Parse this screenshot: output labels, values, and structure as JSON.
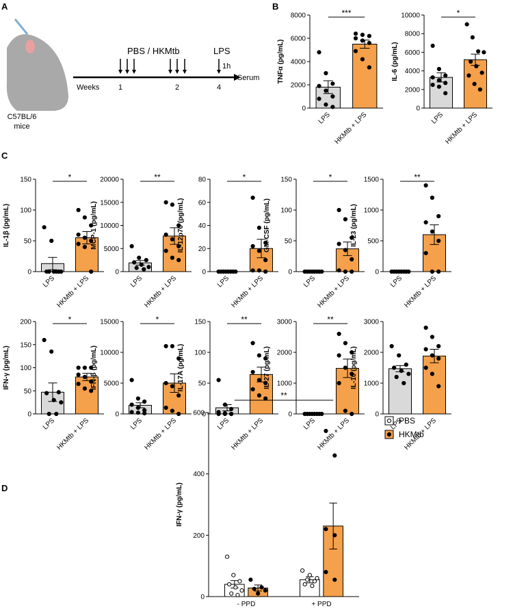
{
  "panel_labels": [
    "A",
    "B",
    "C",
    "D"
  ],
  "schematic": {
    "mouse": [
      "C57BL/6",
      "mice"
    ],
    "weeks": "Weeks",
    "week_numbers": [
      "1",
      "2",
      "4"
    ],
    "treatment": "PBS / HKMtb",
    "challenge": "LPS",
    "interval": "1h",
    "endpoint": "Serum"
  },
  "chart_data": [
    {
      "type": "bar",
      "ylabel": "TNFα (pg/mL)",
      "categories": [
        "LPS",
        "HKMtb + LPS"
      ],
      "colors": [
        "#d9d9d9",
        "#f5a04a"
      ],
      "values": [
        1800,
        5500
      ],
      "errors": [
        550,
        350
      ],
      "points": [
        [
          4800,
          3000,
          2100,
          1900,
          1500,
          1000,
          800,
          300,
          100
        ],
        [
          6400,
          6300,
          6200,
          6000,
          5800,
          5600,
          4900,
          4200,
          3500
        ]
      ],
      "significance": "***",
      "ylim": [
        0,
        8000
      ],
      "yticks": [
        0,
        2000,
        4000,
        6000,
        8000
      ]
    },
    {
      "type": "bar",
      "ylabel": "IL-6 (pg/mL)",
      "categories": [
        "LPS",
        "HKMtb + LPS"
      ],
      "colors": [
        "#d9d9d9",
        "#f5a04a"
      ],
      "values": [
        3300,
        5200
      ],
      "errors": [
        500,
        600
      ],
      "points": [
        [
          6700,
          4200,
          3500,
          3300,
          3000,
          2700,
          2500,
          2300,
          1600
        ],
        [
          9000,
          7600,
          6100,
          6000,
          5000,
          4500,
          3800,
          3500,
          2600,
          2000
        ]
      ],
      "significance": "*",
      "ylim": [
        0,
        10000
      ],
      "yticks": [
        0,
        2000,
        4000,
        6000,
        8000,
        10000
      ]
    },
    {
      "type": "bar",
      "ylabel": "IL-1β (pg/mL)",
      "categories": [
        "LPS",
        "HKMtb + LPS"
      ],
      "colors": [
        "#d9d9d9",
        "#f5a04a"
      ],
      "values": [
        13,
        55
      ],
      "errors": [
        10,
        10
      ],
      "points": [
        [
          72,
          50,
          0,
          0,
          0,
          0,
          0,
          0
        ],
        [
          100,
          88,
          75,
          60,
          55,
          50,
          45,
          40,
          0
        ]
      ],
      "significance": "*",
      "ylim": [
        0,
        150
      ],
      "yticks": [
        0,
        50,
        100,
        150
      ]
    },
    {
      "type": "bar",
      "ylabel": "MCP-1 (pg/mL)",
      "categories": [
        "LPS",
        "HKMtb + LPS"
      ],
      "colors": [
        "#d9d9d9",
        "#f5a04a"
      ],
      "values": [
        1900,
        7700
      ],
      "errors": [
        500,
        1800
      ],
      "points": [
        [
          5500,
          3000,
          2500,
          2000,
          1500,
          1000,
          800,
          500
        ],
        [
          15000,
          14500,
          10000,
          8000,
          7000,
          5500,
          4500,
          3000,
          2500
        ]
      ],
      "significance": "**",
      "ylim": [
        0,
        20000
      ],
      "yticks": [
        0,
        5000,
        10000,
        15000,
        20000
      ]
    },
    {
      "type": "bar",
      "ylabel": "IL-12p70 (pg/mL)",
      "categories": [
        "LPS",
        "HKMtb + LPS"
      ],
      "colors": [
        "#d9d9d9",
        "#f5a04a"
      ],
      "values": [
        0,
        20
      ],
      "errors": [
        0,
        8
      ],
      "points": [
        [
          0,
          0,
          0,
          0,
          0,
          0,
          0,
          0
        ],
        [
          64,
          38,
          25,
          22,
          18,
          10,
          1,
          1,
          0
        ]
      ],
      "significance": "*",
      "ylim": [
        0,
        80
      ],
      "yticks": [
        0,
        20,
        40,
        60,
        80
      ]
    },
    {
      "type": "bar",
      "ylabel": "GM-CSF (pg/mL)",
      "categories": [
        "LPS",
        "HKMtb + LPS"
      ],
      "colors": [
        "#d9d9d9",
        "#f5a04a"
      ],
      "values": [
        0,
        37
      ],
      "errors": [
        0,
        11
      ],
      "points": [
        [
          0,
          0,
          0,
          0,
          0,
          0,
          0,
          0
        ],
        [
          100,
          85,
          55,
          45,
          35,
          20,
          2,
          0,
          0
        ]
      ],
      "significance": "*",
      "ylim": [
        0,
        150
      ],
      "yticks": [
        0,
        50,
        100,
        150
      ]
    },
    {
      "type": "bar",
      "ylabel": "IL-23 (pg/mL)",
      "categories": [
        "LPS",
        "HKMtb + LPS"
      ],
      "colors": [
        "#d9d9d9",
        "#f5a04a"
      ],
      "values": [
        0,
        600
      ],
      "errors": [
        0,
        160
      ],
      "points": [
        [
          0,
          0,
          0,
          0,
          0,
          0,
          0,
          0
        ],
        [
          1400,
          1200,
          900,
          800,
          650,
          500,
          300,
          0,
          0
        ]
      ],
      "significance": "**",
      "ylim": [
        0,
        1500
      ],
      "yticks": [
        0,
        500,
        1000,
        1500
      ]
    },
    {
      "type": "bar",
      "ylabel": "IFN-γ (pg/mL)",
      "categories": [
        "LPS",
        "HKMtb + LPS"
      ],
      "colors": [
        "#d9d9d9",
        "#f5a04a"
      ],
      "values": [
        47,
        80
      ],
      "errors": [
        20,
        8
      ],
      "points": [
        [
          160,
          135,
          47,
          45,
          30,
          25,
          0,
          0
        ],
        [
          100,
          100,
          100,
          85,
          80,
          70,
          65,
          55,
          50
        ]
      ],
      "significance": "*",
      "ylim": [
        0,
        200
      ],
      "yticks": [
        0,
        50,
        100,
        150,
        200
      ]
    },
    {
      "type": "bar",
      "ylabel": "IFN-β (pg/mL)",
      "categories": [
        "LPS",
        "HKMtb + LPS"
      ],
      "colors": [
        "#d9d9d9",
        "#f5a04a"
      ],
      "values": [
        1400,
        5000
      ],
      "errors": [
        400,
        1500
      ],
      "points": [
        [
          5500,
          2500,
          2000,
          1500,
          1000,
          600,
          300,
          200,
          100
        ],
        [
          11000,
          11000,
          9000,
          5000,
          4500,
          3000,
          1000,
          500,
          0
        ]
      ],
      "significance": "*",
      "ylim": [
        0,
        15000
      ],
      "yticks": [
        0,
        5000,
        10000,
        15000
      ]
    },
    {
      "type": "bar",
      "ylabel": "IL-17A (pg/mL)",
      "categories": [
        "LPS",
        "HKMtb + LPS"
      ],
      "colors": [
        "#d9d9d9",
        "#f5a04a"
      ],
      "values": [
        10,
        64
      ],
      "errors": [
        5,
        12
      ],
      "points": [
        [
          55,
          15,
          8,
          3,
          1,
          0,
          0,
          0,
          0
        ],
        [
          115,
          95,
          90,
          68,
          55,
          50,
          40,
          30,
          25
        ]
      ],
      "significance": "**",
      "ylim": [
        0,
        150
      ],
      "yticks": [
        0,
        50,
        100,
        150
      ]
    },
    {
      "type": "bar",
      "ylabel": "IL-27 (pg/mL)",
      "categories": [
        "LPS",
        "HKMtb + LPS"
      ],
      "colors": [
        "#d9d9d9",
        "#f5a04a"
      ],
      "values": [
        0,
        1480
      ],
      "errors": [
        0,
        300
      ],
      "points": [
        [
          0,
          0,
          0,
          0,
          0,
          0,
          0,
          0
        ],
        [
          2600,
          2300,
          2000,
          1900,
          1500,
          1300,
          1000,
          100,
          0
        ]
      ],
      "significance": "**",
      "ylim": [
        0,
        3000
      ],
      "yticks": [
        0,
        1000,
        2000,
        3000
      ]
    },
    {
      "type": "bar",
      "ylabel": "IL-10 (pg/mL)",
      "categories": [
        "LPS",
        "HKMtb + LPS"
      ],
      "colors": [
        "#d9d9d9",
        "#f5a04a"
      ],
      "values": [
        1470,
        1880
      ],
      "errors": [
        100,
        220
      ],
      "points": [
        [
          2200,
          1900,
          1600,
          1500,
          1400,
          1300,
          1200,
          1000
        ],
        [
          2800,
          2500,
          2200,
          2100,
          1900,
          1800,
          1500,
          1300,
          900
        ]
      ],
      "ylim": [
        0,
        3000
      ],
      "yticks": [
        0,
        1000,
        2000,
        3000
      ]
    },
    {
      "type": "grouped_bar",
      "ylabel": "IFN-γ (pg/mL)",
      "categories": [
        "- PPD",
        "+ PPD"
      ],
      "significance": "**",
      "ylim": [
        0,
        600
      ],
      "yticks": [
        0,
        200,
        400,
        600
      ],
      "series": [
        {
          "name": "PBS",
          "color": "#ffffff",
          "point_style": "open",
          "values": [
            40,
            55
          ],
          "errors": [
            12,
            10
          ],
          "points": [
            [
              130,
              70,
              50,
              40,
              30,
              20,
              10,
              5
            ],
            [
              85,
              70,
              60,
              55,
              50,
              40,
              35
            ]
          ]
        },
        {
          "name": "HKMtb",
          "color": "#f5a04a",
          "point_style": "filled",
          "values": [
            28,
            230
          ],
          "errors": [
            10,
            75
          ],
          "points": [
            [
              55,
              30,
              25,
              20,
              10
            ],
            [
              540,
              460,
              220,
              200,
              80,
              55
            ]
          ]
        }
      ]
    }
  ]
}
